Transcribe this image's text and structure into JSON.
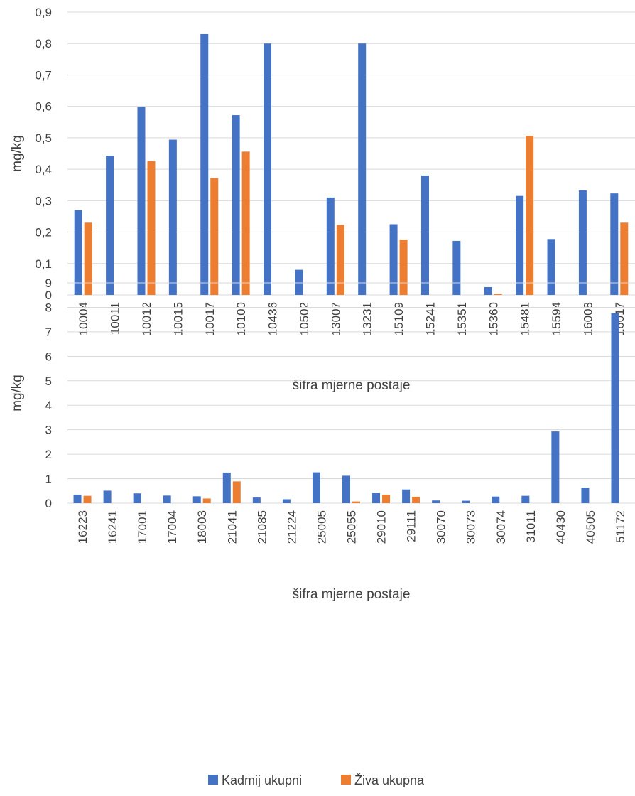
{
  "legend": {
    "placement": "bottom-center",
    "items": [
      {
        "label": "Kadmij ukupni",
        "color": "#4472C4"
      },
      {
        "label": "Živa ukupna",
        "color": "#ED7D31"
      }
    ]
  },
  "chart_data": [
    {
      "type": "bar",
      "xlabel": "šifra mjerne postaje",
      "ylabel": "mg/kg",
      "ylim": [
        0,
        0.9
      ],
      "yticks": [
        "0",
        "0,1",
        "0,2",
        "0,3",
        "0,4",
        "0,5",
        "0,6",
        "0,7",
        "0,8",
        "0,9"
      ],
      "grid": true,
      "categories": [
        "10004",
        "10011",
        "10012",
        "10015",
        "10017",
        "10100",
        "10436",
        "10502",
        "13007",
        "13231",
        "15109",
        "15241",
        "15351",
        "15360",
        "15481",
        "15594",
        "16008",
        "16017"
      ],
      "series": [
        {
          "name": "Kadmij ukupni",
          "color": "#4472C4",
          "values": [
            0.27,
            0.443,
            0.598,
            0.494,
            0.83,
            0.572,
            0.8,
            0.08,
            0.31,
            0.8,
            0.225,
            0.38,
            0.172,
            0.025,
            0.315,
            0.178,
            0.333,
            0.323
          ]
        },
        {
          "name": "Živa ukupna",
          "color": "#ED7D31",
          "values": [
            0.23,
            null,
            0.426,
            null,
            0.372,
            0.456,
            null,
            null,
            0.223,
            null,
            0.176,
            null,
            null,
            0.004,
            0.506,
            null,
            null,
            0.23
          ]
        }
      ]
    },
    {
      "type": "bar",
      "xlabel": "šifra mjerne postaje",
      "ylabel": "mg/kg",
      "ylim": [
        0,
        9
      ],
      "yticks": [
        "0",
        "1",
        "2",
        "3",
        "4",
        "5",
        "6",
        "7",
        "8",
        "9"
      ],
      "grid": true,
      "categories": [
        "16223",
        "16241",
        "17001",
        "17004",
        "18003",
        "21041",
        "21085",
        "21224",
        "25005",
        "25055",
        "29010",
        "29111",
        "30070",
        "30073",
        "30074",
        "31011",
        "40430",
        "40505",
        "51172"
      ],
      "series": [
        {
          "name": "Kadmij ukupni",
          "color": "#4472C4",
          "values": [
            0.35,
            0.51,
            0.4,
            0.31,
            0.28,
            1.25,
            0.23,
            0.16,
            1.26,
            1.12,
            0.42,
            0.56,
            0.11,
            0.1,
            0.27,
            0.3,
            2.93,
            0.63,
            7.76
          ]
        },
        {
          "name": "Živa ukupna",
          "color": "#ED7D31",
          "values": [
            0.3,
            null,
            null,
            null,
            0.19,
            0.89,
            null,
            null,
            null,
            0.07,
            0.35,
            0.26,
            null,
            null,
            null,
            null,
            null,
            null,
            null
          ]
        }
      ]
    }
  ]
}
